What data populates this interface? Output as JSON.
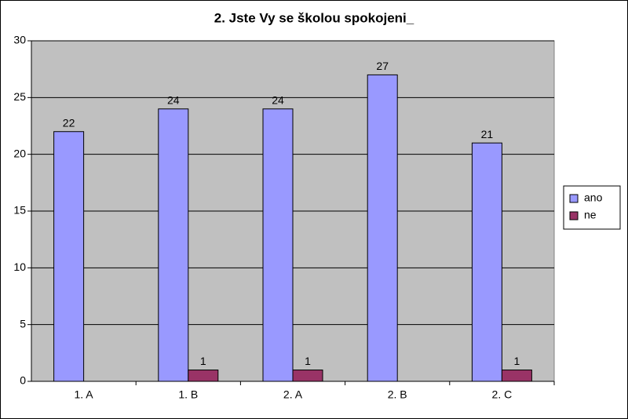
{
  "chart_data": {
    "type": "bar",
    "title": "2. Jste Vy se školou spokojeni_",
    "categories": [
      "1. A",
      "1. B",
      "2. A",
      "2. B",
      "2. C"
    ],
    "series": [
      {
        "name": "ano",
        "color": "#9999ff",
        "values": [
          22,
          24,
          24,
          27,
          21
        ]
      },
      {
        "name": "ne",
        "color": "#993366",
        "values": [
          null,
          1,
          1,
          null,
          1
        ]
      }
    ],
    "ylim": [
      0,
      30
    ],
    "yticks": [
      0,
      5,
      10,
      15,
      20,
      25,
      30
    ],
    "grid": true,
    "legend": "right"
  }
}
